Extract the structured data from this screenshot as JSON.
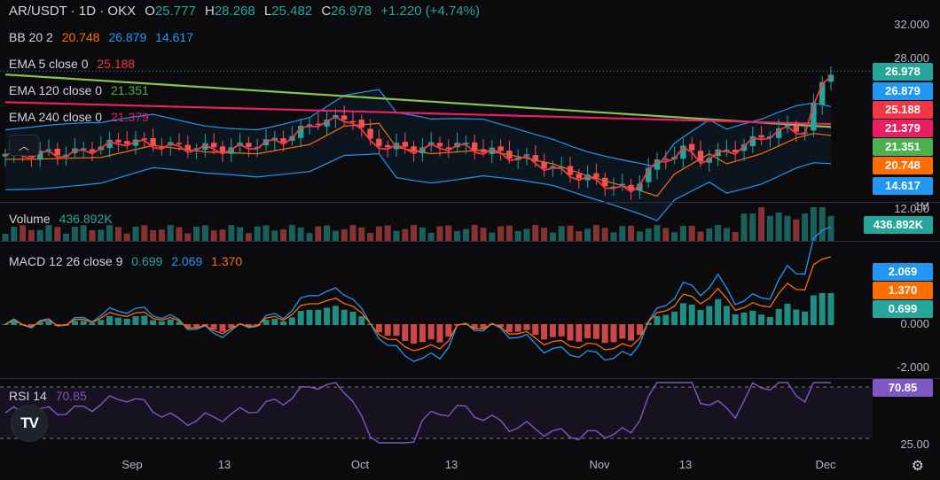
{
  "header": {
    "symbol": "AR/USDT · 1D · OKX",
    "open_label": "O",
    "open": "25.777",
    "high_label": "H",
    "high": "28.268",
    "low_label": "L",
    "low": "25.482",
    "close_label": "C",
    "close": "26.978",
    "change": "+1.220 (+4.74%)"
  },
  "indicators": {
    "bb": {
      "label": "BB 20 2",
      "basis": "20.748",
      "upper": "26.879",
      "lower": "14.617"
    },
    "ema5": {
      "label": "EMA 5 close 0",
      "value": "25.188"
    },
    "ema120": {
      "label": "EMA 120 close 0",
      "value": "21.351"
    },
    "ema240": {
      "label": "EMA 240 close 0",
      "value": "21.379"
    },
    "volume": {
      "label": "Volume",
      "value": "436.892K"
    },
    "macd": {
      "label": "MACD 12 26 close 9",
      "hist": "0.699",
      "macd": "2.069",
      "signal": "1.370"
    },
    "rsi": {
      "label": "RSI 14",
      "value": "70.85"
    }
  },
  "price_tags": [
    {
      "value": "26.978",
      "color": "#26a69a"
    },
    {
      "value": "26.879",
      "color": "#2196f3"
    },
    {
      "value": "25.188",
      "color": "#f23645"
    },
    {
      "value": "21.379",
      "color": "#e91e63"
    },
    {
      "value": "21.351",
      "color": "#4caf50"
    },
    {
      "value": "20.748",
      "color": "#ff6d00"
    },
    {
      "value": "14.617",
      "color": "#2196f3"
    }
  ],
  "volume_tag": {
    "value": "436.892K",
    "color": "#26a69a"
  },
  "macd_tags": [
    {
      "value": "2.069",
      "color": "#2196f3"
    },
    {
      "value": "1.370",
      "color": "#ff6d00"
    },
    {
      "value": "0.699",
      "color": "#26a69a"
    }
  ],
  "rsi_tag": {
    "value": "70.85",
    "color": "#7e57c2"
  },
  "price_axis": [
    "32.000",
    "28.000",
    "12.000"
  ],
  "volume_axis": [
    "1M"
  ],
  "macd_axis": [
    "0.000",
    "-2.000"
  ],
  "rsi_axis": [
    "25.00"
  ],
  "time_axis": [
    "Sep",
    "13",
    "Oct",
    "13",
    "Nov",
    "13",
    "Dec"
  ],
  "logo_text": "TV",
  "colors": {
    "up": "#26a69a",
    "down": "#ef5350",
    "bb": "#2196f3",
    "ema5": "#f23645",
    "ema120": "#8bc34a",
    "ema240": "#e91e63",
    "rsi": "#7e57c2"
  }
}
